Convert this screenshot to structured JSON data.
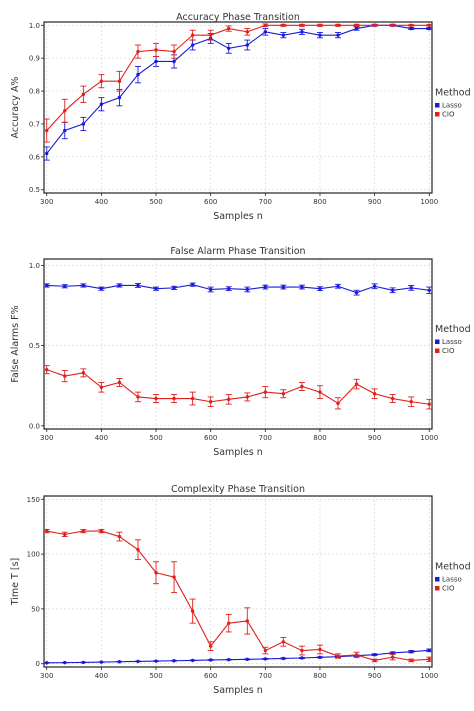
{
  "figure": {
    "colors": {
      "lasso": "#1a1adb",
      "cio": "#e0201e",
      "grid": "#d6d6d6",
      "frame": "#222222"
    }
  },
  "chart_data": [
    {
      "type": "line",
      "title": "Accuracy Phase Transition",
      "xlabel": "Samples n",
      "ylabel": "Accuracy A%",
      "xlim": [
        295,
        1005
      ],
      "ylim": [
        0.49,
        1.01
      ],
      "xticks": [
        300,
        400,
        500,
        600,
        700,
        800,
        900,
        1000
      ],
      "yticks": [
        0.5,
        0.6,
        0.7,
        0.8,
        0.9,
        1.0
      ],
      "ytick_labels": [
        "0.5",
        "0.6",
        "0.7",
        "0.8",
        "0.9",
        "1.0"
      ],
      "grid": true,
      "legend": {
        "title": "Method",
        "position": "right",
        "entries": [
          "Lasso",
          "CIO"
        ]
      },
      "x": [
        300,
        333,
        367,
        400,
        433,
        467,
        500,
        533,
        567,
        600,
        633,
        667,
        700,
        733,
        767,
        800,
        833,
        867,
        900,
        933,
        967,
        1000
      ],
      "series": [
        {
          "name": "Lasso",
          "values": [
            0.61,
            0.68,
            0.7,
            0.76,
            0.78,
            0.85,
            0.89,
            0.89,
            0.94,
            0.96,
            0.93,
            0.94,
            0.98,
            0.97,
            0.98,
            0.97,
            0.97,
            0.99,
            1.0,
            1.0,
            0.99,
            0.99
          ],
          "errors": [
            0.02,
            0.025,
            0.02,
            0.02,
            0.025,
            0.025,
            0.015,
            0.02,
            0.015,
            0.015,
            0.015,
            0.015,
            0.01,
            0.008,
            0.008,
            0.008,
            0.008,
            0.005,
            0.003,
            0.003,
            0.003,
            0.003
          ]
        },
        {
          "name": "CIO",
          "values": [
            0.68,
            0.74,
            0.79,
            0.83,
            0.83,
            0.92,
            0.925,
            0.92,
            0.97,
            0.97,
            0.99,
            0.98,
            1.0,
            1.0,
            1.0,
            1.0,
            1.0,
            1.0,
            1.0,
            1.0,
            1.0,
            1.0
          ],
          "errors": [
            0.035,
            0.035,
            0.025,
            0.02,
            0.03,
            0.02,
            0.02,
            0.02,
            0.015,
            0.015,
            0.008,
            0.01,
            0.004,
            0.003,
            0.003,
            0.003,
            0.003,
            0.003,
            0.002,
            0.002,
            0.002,
            0.002
          ]
        }
      ]
    },
    {
      "type": "line",
      "title": "False Alarm Phase Transition",
      "xlabel": "Samples n",
      "ylabel": "False Alarms F%",
      "xlim": [
        295,
        1005
      ],
      "ylim": [
        -0.02,
        1.04
      ],
      "xticks": [
        300,
        400,
        500,
        600,
        700,
        800,
        900,
        1000
      ],
      "yticks": [
        0.0,
        0.5,
        1.0
      ],
      "ytick_labels": [
        "0.0",
        "0.5",
        "1.0"
      ],
      "grid": true,
      "legend": {
        "title": "Method",
        "position": "right",
        "entries": [
          "Lasso",
          "CIO"
        ]
      },
      "x": [
        300,
        333,
        367,
        400,
        433,
        467,
        500,
        533,
        567,
        600,
        633,
        667,
        700,
        733,
        767,
        800,
        833,
        867,
        900,
        933,
        967,
        1000
      ],
      "series": [
        {
          "name": "Lasso",
          "values": [
            0.875,
            0.87,
            0.875,
            0.855,
            0.875,
            0.875,
            0.855,
            0.86,
            0.88,
            0.85,
            0.855,
            0.85,
            0.865,
            0.865,
            0.865,
            0.855,
            0.87,
            0.83,
            0.87,
            0.845,
            0.86,
            0.845
          ],
          "errors": [
            0.01,
            0.01,
            0.01,
            0.01,
            0.01,
            0.012,
            0.01,
            0.01,
            0.01,
            0.015,
            0.012,
            0.015,
            0.012,
            0.012,
            0.012,
            0.012,
            0.012,
            0.015,
            0.015,
            0.015,
            0.015,
            0.02
          ]
        },
        {
          "name": "CIO",
          "values": [
            0.35,
            0.31,
            0.33,
            0.24,
            0.27,
            0.18,
            0.17,
            0.17,
            0.17,
            0.15,
            0.165,
            0.18,
            0.21,
            0.2,
            0.245,
            0.21,
            0.14,
            0.26,
            0.2,
            0.17,
            0.15,
            0.135
          ],
          "errors": [
            0.025,
            0.035,
            0.025,
            0.03,
            0.025,
            0.03,
            0.025,
            0.025,
            0.04,
            0.03,
            0.03,
            0.025,
            0.035,
            0.025,
            0.025,
            0.04,
            0.035,
            0.03,
            0.03,
            0.025,
            0.03,
            0.03
          ]
        }
      ]
    },
    {
      "type": "line",
      "title": "Complexity Phase Transition",
      "xlabel": "Samples n",
      "ylabel": "Time T [s]",
      "xlim": [
        295,
        1005
      ],
      "ylim": [
        -3,
        153
      ],
      "xticks": [
        300,
        400,
        500,
        600,
        700,
        800,
        900,
        1000
      ],
      "yticks": [
        0,
        50,
        100,
        150
      ],
      "ytick_labels": [
        "0",
        "50",
        "100",
        "150"
      ],
      "grid": true,
      "legend": {
        "title": "Method",
        "position": "right",
        "entries": [
          "Lasso",
          "CIO"
        ]
      },
      "x": [
        300,
        333,
        367,
        400,
        433,
        467,
        500,
        533,
        567,
        600,
        633,
        667,
        700,
        733,
        767,
        800,
        833,
        867,
        900,
        933,
        967,
        1000
      ],
      "series": [
        {
          "name": "Lasso",
          "values": [
            0.8,
            1.0,
            1.2,
            1.5,
            1.8,
            2.1,
            2.4,
            2.7,
            3.0,
            3.4,
            3.7,
            4.0,
            4.4,
            4.8,
            5.2,
            5.8,
            6.4,
            7.3,
            8.2,
            9.8,
            11.0,
            12.2
          ],
          "errors": [
            0.2,
            0.2,
            0.2,
            0.2,
            0.2,
            0.25,
            0.25,
            0.3,
            0.3,
            0.35,
            0.35,
            0.4,
            0.4,
            0.45,
            0.5,
            0.5,
            0.6,
            0.7,
            0.8,
            1.0,
            1.0,
            1.2
          ]
        },
        {
          "name": "CIO",
          "values": [
            121,
            118,
            121,
            121,
            116,
            104,
            83,
            79,
            48,
            16,
            37,
            39,
            12,
            20,
            12,
            13,
            7,
            8,
            3,
            6,
            3,
            4
          ],
          "errors": [
            1.5,
            2,
            1.5,
            1.5,
            4,
            9,
            10,
            14,
            11,
            4,
            8,
            12,
            3,
            4,
            4,
            4,
            2,
            2.5,
            1.2,
            2.5,
            1.2,
            2
          ]
        }
      ]
    }
  ]
}
